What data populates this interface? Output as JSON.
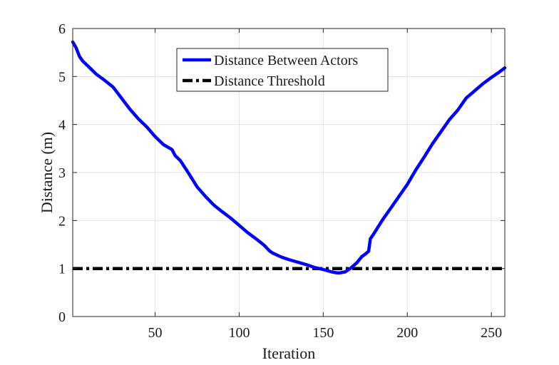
{
  "chart_data": {
    "type": "line",
    "xlabel": "Iteration",
    "ylabel": "Distance (m)",
    "xlim": [
      1,
      258
    ],
    "ylim": [
      0,
      6
    ],
    "xticks": [
      50,
      100,
      150,
      200,
      250
    ],
    "yticks": [
      0,
      1,
      2,
      3,
      4,
      5,
      6
    ],
    "grid": true,
    "legend_position": "top-center",
    "series": [
      {
        "name": "Distance Between Actors",
        "color": "#0000ff",
        "style": "solid",
        "x": [
          1,
          3,
          5,
          7,
          10,
          15,
          20,
          25,
          30,
          35,
          40,
          45,
          50,
          55,
          60,
          62,
          65,
          70,
          75,
          80,
          85,
          90,
          95,
          100,
          105,
          110,
          115,
          118,
          120,
          125,
          130,
          135,
          140,
          145,
          150,
          155,
          158,
          160,
          163,
          166,
          170,
          173,
          175,
          177,
          178,
          180,
          185,
          190,
          195,
          200,
          205,
          210,
          215,
          220,
          225,
          230,
          235,
          240,
          245,
          250,
          255,
          258
        ],
        "y": [
          5.72,
          5.6,
          5.42,
          5.32,
          5.22,
          5.05,
          4.92,
          4.78,
          4.55,
          4.32,
          4.12,
          3.95,
          3.75,
          3.58,
          3.48,
          3.35,
          3.25,
          2.98,
          2.7,
          2.5,
          2.32,
          2.18,
          2.05,
          1.9,
          1.75,
          1.62,
          1.48,
          1.37,
          1.32,
          1.24,
          1.18,
          1.13,
          1.08,
          1.02,
          0.98,
          0.93,
          0.91,
          0.91,
          0.93,
          1.0,
          1.12,
          1.25,
          1.3,
          1.36,
          1.62,
          1.72,
          2.0,
          2.25,
          2.5,
          2.75,
          3.05,
          3.32,
          3.6,
          3.85,
          4.1,
          4.3,
          4.55,
          4.7,
          4.85,
          4.98,
          5.1,
          5.18
        ]
      },
      {
        "name": "Distance Threshold",
        "color": "#000000",
        "style": "dash-dot",
        "x": [
          1,
          258
        ],
        "y": [
          1,
          1
        ]
      }
    ]
  }
}
